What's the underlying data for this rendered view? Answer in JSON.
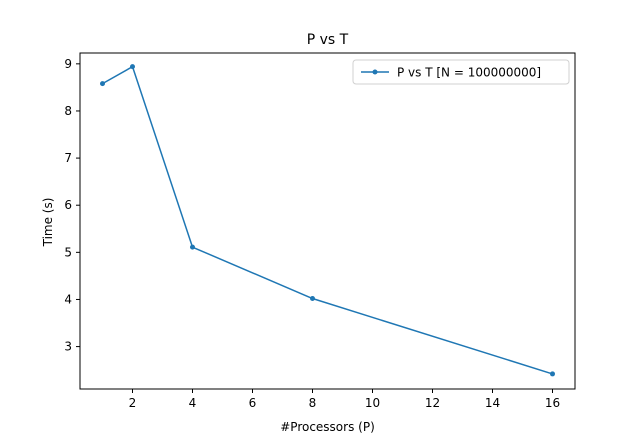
{
  "chart_data": {
    "type": "line",
    "title": "P vs T",
    "xlabel": "#Processors (P)",
    "ylabel": "Time (s)",
    "xlim": [
      0.25,
      16.75
    ],
    "ylim": [
      2.1,
      9.23
    ],
    "xticks": [
      2,
      4,
      6,
      8,
      10,
      12,
      14,
      16
    ],
    "yticks": [
      3,
      4,
      5,
      6,
      7,
      8,
      9
    ],
    "grid": false,
    "legend_position": "upper right",
    "series": [
      {
        "name": "P vs T [N = 100000000]",
        "color": "#1f77b4",
        "marker": "point",
        "x": [
          1,
          2,
          4,
          8,
          16
        ],
        "y": [
          8.58,
          8.94,
          5.11,
          4.02,
          2.42
        ]
      }
    ]
  }
}
